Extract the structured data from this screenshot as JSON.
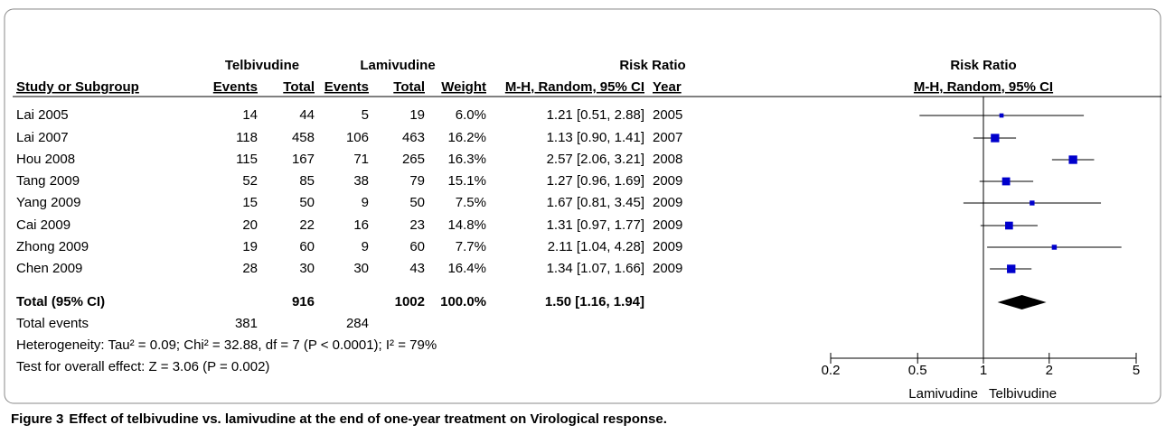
{
  "chart_data": {
    "type": "forest",
    "group_headers": [
      "Telbivudine",
      "Lamivudine",
      "Risk Ratio",
      "Risk Ratio"
    ],
    "column_headers": [
      "Study or Subgroup",
      "Events",
      "Total",
      "Events",
      "Total",
      "Weight",
      "M-H, Random, 95% CI",
      "Year",
      "M-H, Random, 95% CI"
    ],
    "studies": [
      "Lai 2005",
      "Lai 2007",
      "Hou 2008",
      "Tang 2009",
      "Yang 2009",
      "Cai 2009",
      "Zhong 2009",
      "Chen 2009"
    ],
    "telbivudine_events": [
      14,
      118,
      115,
      52,
      15,
      20,
      19,
      28
    ],
    "telbivudine_total": [
      44,
      458,
      167,
      85,
      50,
      22,
      60,
      30
    ],
    "lamivudine_events": [
      5,
      106,
      71,
      38,
      9,
      16,
      9,
      30
    ],
    "lamivudine_total": [
      19,
      463,
      265,
      79,
      50,
      23,
      60,
      43
    ],
    "weight": [
      6.0,
      16.2,
      16.3,
      15.1,
      7.5,
      14.8,
      7.7,
      16.4
    ],
    "weight_labels": [
      "6.0%",
      "16.2%",
      "16.3%",
      "15.1%",
      "7.5%",
      "14.8%",
      "7.7%",
      "16.4%"
    ],
    "rr": [
      1.21,
      1.13,
      2.57,
      1.27,
      1.67,
      1.31,
      2.11,
      1.34
    ],
    "ci_low": [
      0.51,
      0.9,
      2.06,
      0.96,
      0.81,
      0.97,
      1.04,
      1.07
    ],
    "ci_high": [
      2.88,
      1.41,
      3.21,
      1.69,
      3.45,
      1.77,
      4.28,
      1.66
    ],
    "rr_labels": [
      "1.21 [0.51, 2.88]",
      "1.13 [0.90, 1.41]",
      "2.57 [2.06, 3.21]",
      "1.27 [0.96, 1.69]",
      "1.67 [0.81, 3.45]",
      "1.31 [0.97, 1.77]",
      "2.11 [1.04, 4.28]",
      "1.34 [1.07, 1.66]"
    ],
    "year": [
      "2005",
      "2007",
      "2008",
      "2009",
      "2009",
      "2009",
      "2009",
      "2009"
    ],
    "total": {
      "label": "Total (95% CI)",
      "telbivudine_total": 916,
      "lamivudine_total": 1002,
      "weight_label": "100.0%",
      "rr": 1.5,
      "ci_low": 1.16,
      "ci_high": 1.94,
      "rr_label": "1.50 [1.16, 1.94]"
    },
    "total_events": {
      "label": "Total events",
      "telbivudine": 381,
      "lamivudine": 284
    },
    "heterogeneity": "Heterogeneity: Tau² = 0.09; Chi² = 32.88, df = 7 (P < 0.0001); I² = 79%",
    "overall_effect": "Test for overall effect: Z = 3.06 (P = 0.002)",
    "xlim": [
      0.2,
      5
    ],
    "xticks": [
      0.2,
      0.5,
      1,
      2,
      5
    ],
    "log_x": true,
    "favours": [
      "Lamivudine",
      "Telbivudine"
    ],
    "marker_color": "#0000cc",
    "caption_label": "Figure 3",
    "caption": "Effect of telbivudine vs. lamivudine at the end of one-year treatment on Virological response."
  }
}
